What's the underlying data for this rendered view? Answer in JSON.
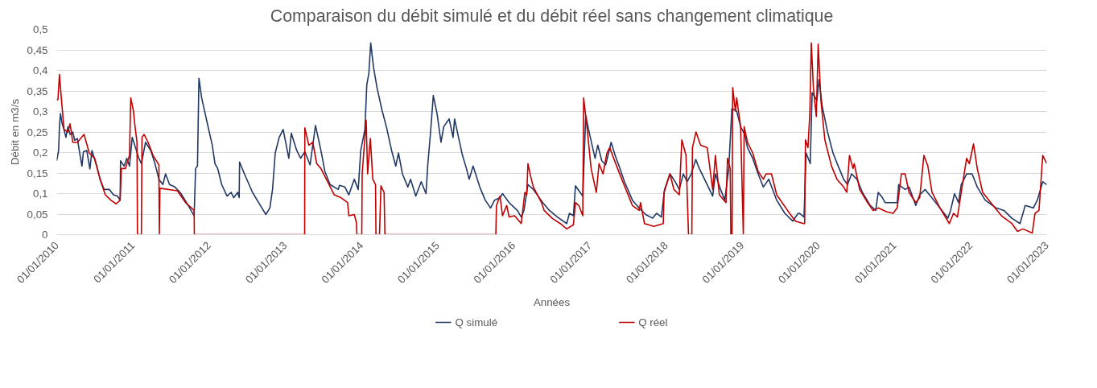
{
  "chart_data": {
    "type": "line",
    "title": "Comparaison du débit simulé et du débit réel sans changement climatique",
    "xlabel": "Années",
    "ylabel": "Débit en m3/s",
    "xlim": [
      "2010-01-01",
      "2023-01-01"
    ],
    "xticks": [
      {
        "value": "2010-01-01",
        "label": "01/01/2010"
      },
      {
        "value": "2011-01-01",
        "label": "01/01/2011"
      },
      {
        "value": "2012-01-01",
        "label": "01/01/2012"
      },
      {
        "value": "2013-01-01",
        "label": "01/01/2013"
      },
      {
        "value": "2014-01-01",
        "label": "01/01/2014"
      },
      {
        "value": "2015-01-01",
        "label": "01/01/2015"
      },
      {
        "value": "2016-01-01",
        "label": "01/01/2016"
      },
      {
        "value": "2017-01-01",
        "label": "01/01/2017"
      },
      {
        "value": "2018-01-01",
        "label": "01/01/2018"
      },
      {
        "value": "2019-01-01",
        "label": "01/01/2019"
      },
      {
        "value": "2020-01-01",
        "label": "01/01/2020"
      },
      {
        "value": "2021-01-01",
        "label": "01/01/2021"
      },
      {
        "value": "2022-01-01",
        "label": "01/01/2022"
      },
      {
        "value": "2023-01-01",
        "label": "01/01/2023"
      }
    ],
    "ylim": [
      0,
      0.5
    ],
    "yticks": [
      0,
      {
        "value": 0.05,
        "label": "0,05"
      },
      {
        "value": 0.1,
        "label": "0,1"
      },
      {
        "value": 0.15,
        "label": "0,15"
      },
      {
        "value": 0.2,
        "label": "0,2"
      },
      {
        "value": 0.25,
        "label": "0,25"
      },
      {
        "value": 0.3,
        "label": "0,3"
      },
      {
        "value": 0.35,
        "label": "0,35"
      },
      {
        "value": 0.4,
        "label": "0,4"
      },
      {
        "value": 0.45,
        "label": "0,45"
      },
      {
        "value": 0.5,
        "label": "0,5"
      }
    ],
    "grid": "y",
    "legend": "bottom",
    "line_style": "solid",
    "marker": "none",
    "series": [
      {
        "name": "Q simulé",
        "color": "#203864",
        "x": [
          "2010-01-01",
          "2010-01-10",
          "2010-01-14",
          "2010-01-19",
          "2010-01-27",
          "2010-02-05",
          "2010-02-14",
          "2010-02-24",
          "2010-03-06",
          "2010-03-19",
          "2010-03-28",
          "2010-04-10",
          "2010-04-23",
          "2010-05-02",
          "2010-05-09",
          "2010-05-25",
          "2010-06-09",
          "2010-06-19",
          "2010-07-08",
          "2010-07-28",
          "2010-08-16",
          "2010-09-11",
          "2010-09-30",
          "2010-10-19",
          "2010-11-01",
          "2010-11-03",
          "2010-11-20",
          "2010-12-03",
          "2010-12-16",
          "2010-12-29",
          "2011-01-10",
          "2011-01-30",
          "2011-02-11",
          "2011-03-03",
          "2011-03-28",
          "2011-04-17",
          "2011-05-06",
          "2011-05-25",
          "2011-06-07",
          "2011-06-26",
          "2011-07-22",
          "2011-08-16",
          "2011-09-24",
          "2011-10-22",
          "2011-10-29",
          "2011-11-07",
          "2011-11-14",
          "2011-11-27",
          "2011-12-22",
          "2012-01-17",
          "2012-01-30",
          "2012-02-12",
          "2012-03-02",
          "2012-03-28",
          "2012-04-16",
          "2012-04-29",
          "2012-05-18",
          "2012-05-25",
          "2012-05-27",
          "2012-06-19",
          "2012-07-28",
          "2012-09-04",
          "2012-09-30",
          "2012-10-19",
          "2012-11-01",
          "2012-11-14",
          "2012-12-03",
          "2012-12-22",
          "2013-01-18",
          "2013-01-30",
          "2013-02-25",
          "2013-03-16",
          "2013-04-05",
          "2013-04-30",
          "2013-05-26",
          "2013-06-21",
          "2013-07-10",
          "2013-08-04",
          "2013-09-12",
          "2013-09-18",
          "2013-10-14",
          "2013-11-02",
          "2013-11-28",
          "2013-12-17",
          "2013-12-29",
          "2014-01-18",
          "2014-01-27",
          "2014-02-06",
          "2014-02-15",
          "2014-02-28",
          "2014-03-17",
          "2014-04-11",
          "2014-05-01",
          "2014-05-26",
          "2014-06-15",
          "2014-06-28",
          "2014-07-17",
          "2014-08-12",
          "2014-08-25",
          "2014-09-19",
          "2014-10-15",
          "2014-11-07",
          "2014-11-16",
          "2014-11-29",
          "2014-12-12",
          "2014-12-30",
          "2015-01-18",
          "2015-01-31",
          "2015-02-26",
          "2015-03-17",
          "2015-03-24",
          "2015-04-12",
          "2015-05-01",
          "2015-05-20",
          "2015-06-02",
          "2015-06-21",
          "2015-07-23",
          "2015-08-18",
          "2015-09-13",
          "2015-10-02",
          "2015-10-28",
          "2015-11-09",
          "2015-12-11",
          "2016-01-19",
          "2016-02-07",
          "2016-02-20",
          "2016-03-10",
          "2016-04-05",
          "2016-05-20",
          "2016-06-21",
          "2016-07-29",
          "2016-09-12",
          "2016-09-25",
          "2016-10-14",
          "2016-10-24",
          "2016-11-15",
          "2016-11-28",
          "2016-12-12",
          "2016-12-31",
          "2017-01-26",
          "2017-02-08",
          "2017-02-27",
          "2017-03-18",
          "2017-04-13",
          "2017-05-02",
          "2017-05-21",
          "2017-06-16",
          "2017-07-24",
          "2017-08-25",
          "2017-09-26",
          "2017-10-29",
          "2017-11-17",
          "2017-12-10",
          "2017-12-25",
          "2018-01-20",
          "2018-02-14",
          "2018-03-06",
          "2018-03-25",
          "2018-04-13",
          "2018-05-02",
          "2018-05-24",
          "2018-06-10",
          "2018-07-05",
          "2018-08-13",
          "2018-08-26",
          "2018-09-20",
          "2018-10-10",
          "2018-10-29",
          "2018-11-13",
          "2018-12-06",
          "2018-12-25",
          "2019-01-14",
          "2019-01-27",
          "2019-02-21",
          "2019-03-19",
          "2019-04-13",
          "2019-05-09",
          "2019-06-16",
          "2019-07-25",
          "2019-09-01",
          "2019-09-27",
          "2019-10-03",
          "2019-10-25",
          "2019-11-04",
          "2019-11-24",
          "2019-12-03",
          "2019-12-26",
          "2020-01-05",
          "2020-01-20",
          "2020-02-15",
          "2020-03-12",
          "2020-04-06",
          "2020-05-02",
          "2020-05-21",
          "2020-06-09",
          "2020-07-05",
          "2020-07-31",
          "2020-09-07",
          "2020-10-03",
          "2020-10-15",
          "2020-11-04",
          "2020-11-17",
          "2020-12-06",
          "2021-01-14",
          "2021-01-21",
          "2021-02-21",
          "2021-03-12",
          "2021-04-13",
          "2021-05-02",
          "2021-05-28",
          "2021-06-29",
          "2021-08-07",
          "2021-09-14",
          "2021-09-27",
          "2021-10-16",
          "2021-11-04",
          "2021-11-17",
          "2021-12-13",
          "2022-01-08",
          "2022-02-02",
          "2022-03-12",
          "2022-05-03",
          "2022-06-10",
          "2022-07-18",
          "2022-08-26",
          "2022-09-20",
          "2022-10-29",
          "2022-11-17",
          "2022-12-13",
          "2023-01-01"
        ],
        "values": [
          0.18,
          0.205,
          0.263,
          0.295,
          0.27,
          0.256,
          0.237,
          0.263,
          0.244,
          0.25,
          0.23,
          0.234,
          0.193,
          0.167,
          0.202,
          0.205,
          0.16,
          0.205,
          0.173,
          0.135,
          0.11,
          0.11,
          0.097,
          0.094,
          0.084,
          0.18,
          0.167,
          0.186,
          0.167,
          0.237,
          0.218,
          0.186,
          0.173,
          0.225,
          0.205,
          0.173,
          0.135,
          0.122,
          0.148,
          0.122,
          0.116,
          0.103,
          0.071,
          0.046,
          0.161,
          0.167,
          0.381,
          0.333,
          0.276,
          0.218,
          0.173,
          0.161,
          0.122,
          0.094,
          0.103,
          0.09,
          0.103,
          0.09,
          0.177,
          0.148,
          0.103,
          0.071,
          0.049,
          0.065,
          0.11,
          0.199,
          0.237,
          0.256,
          0.186,
          0.247,
          0.205,
          0.186,
          0.202,
          0.17,
          0.266,
          0.205,
          0.154,
          0.122,
          0.11,
          0.12,
          0.116,
          0.097,
          0.135,
          0.11,
          0.205,
          0.256,
          0.365,
          0.393,
          0.467,
          0.409,
          0.358,
          0.301,
          0.263,
          0.205,
          0.167,
          0.199,
          0.148,
          0.116,
          0.135,
          0.094,
          0.129,
          0.1,
          0.173,
          0.25,
          0.339,
          0.295,
          0.225,
          0.263,
          0.282,
          0.237,
          0.282,
          0.237,
          0.193,
          0.161,
          0.135,
          0.167,
          0.116,
          0.084,
          0.065,
          0.084,
          0.09,
          0.1,
          0.078,
          0.059,
          0.043,
          0.059,
          0.122,
          0.11,
          0.078,
          0.059,
          0.043,
          0.027,
          0.052,
          0.046,
          0.119,
          0.103,
          0.094,
          0.29,
          0.244,
          0.186,
          0.218,
          0.18,
          0.17,
          0.225,
          0.193,
          0.167,
          0.129,
          0.084,
          0.065,
          0.049,
          0.04,
          0.052,
          0.043,
          0.11,
          0.148,
          0.129,
          0.11,
          0.148,
          0.129,
          0.148,
          0.183,
          0.161,
          0.135,
          0.094,
          0.148,
          0.11,
          0.084,
          0.161,
          0.307,
          0.301,
          0.263,
          0.244,
          0.212,
          0.186,
          0.148,
          0.116,
          0.135,
          0.084,
          0.052,
          0.033,
          0.052,
          0.052,
          0.043,
          0.199,
          0.173,
          0.346,
          0.327,
          0.378,
          0.314,
          0.25,
          0.199,
          0.167,
          0.135,
          0.122,
          0.148,
          0.135,
          0.103,
          0.071,
          0.059,
          0.103,
          0.09,
          0.078,
          0.078,
          0.078,
          0.122,
          0.11,
          0.116,
          0.071,
          0.097,
          0.11,
          0.09,
          0.065,
          0.04,
          0.059,
          0.1,
          0.078,
          0.122,
          0.148,
          0.148,
          0.116,
          0.084,
          0.065,
          0.059,
          0.04,
          0.027,
          0.071,
          0.065,
          0.084,
          0.129,
          0.122
        ]
      },
      {
        "name": "Q réel",
        "color": "#c00000",
        "x": [
          "2010-01-01",
          "2010-01-07",
          "2010-01-14",
          "2010-01-23",
          "2010-02-05",
          "2010-02-24",
          "2010-03-06",
          "2010-03-19",
          "2010-04-10",
          "2010-05-12",
          "2010-06-06",
          "2010-07-02",
          "2010-07-28",
          "2010-08-22",
          "2010-09-17",
          "2010-10-13",
          "2010-11-01",
          "2010-11-07",
          "2010-11-26",
          "2010-12-16",
          "2010-12-22",
          "2011-01-04",
          "2011-01-10",
          "2011-01-21",
          "2011-01-23",
          "2011-02-11",
          "2011-02-14",
          "2011-02-24",
          "2011-03-15",
          "2011-04-08",
          "2011-05-06",
          "2011-05-08",
          "2011-05-11",
          "2011-08-03",
          "2011-09-11",
          "2011-10-22",
          "2011-10-23",
          "2013-04-04",
          "2013-04-05",
          "2013-04-24",
          "2013-05-13",
          "2013-06-01",
          "2013-06-21",
          "2013-07-23",
          "2013-08-24",
          "2013-09-25",
          "2013-10-27",
          "2013-11-02",
          "2013-11-28",
          "2013-12-08",
          "2013-12-11",
          "2014-01-03",
          "2014-01-05",
          "2014-01-24",
          "2014-01-31",
          "2014-02-13",
          "2014-02-25",
          "2014-03-10",
          "2014-03-12",
          "2014-03-29",
          "2014-04-05",
          "2014-04-20",
          "2014-04-24",
          "2015-10-08",
          "2015-10-11",
          "2015-10-28",
          "2015-11-09",
          "2015-11-29",
          "2015-12-11",
          "2016-01-06",
          "2016-02-07",
          "2016-02-24",
          "2016-03-04",
          "2016-03-10",
          "2016-03-23",
          "2016-04-05",
          "2016-05-14",
          "2016-05-27",
          "2016-07-04",
          "2016-08-12",
          "2016-09-12",
          "2016-10-14",
          "2016-10-24",
          "2016-11-09",
          "2016-11-28",
          "2016-12-02",
          "2016-12-18",
          "2017-01-07",
          "2017-02-01",
          "2017-02-14",
          "2017-03-05",
          "2017-03-24",
          "2017-04-06",
          "2017-04-25",
          "2017-06-03",
          "2017-07-24",
          "2017-08-25",
          "2017-09-01",
          "2017-09-20",
          "2017-11-04",
          "2017-12-19",
          "2017-12-23",
          "2018-01-20",
          "2018-02-08",
          "2018-03-06",
          "2018-03-18",
          "2018-04-07",
          "2018-04-19",
          "2018-05-05",
          "2018-05-08",
          "2018-05-25",
          "2018-06-16",
          "2018-07-18",
          "2018-08-13",
          "2018-08-26",
          "2018-09-14",
          "2018-10-16",
          "2018-10-23",
          "2018-11-05",
          "2018-11-08",
          "2018-11-14",
          "2018-11-17",
          "2018-11-30",
          "2018-12-06",
          "2018-12-25",
          "2019-01-07",
          "2019-01-11",
          "2019-01-27",
          "2019-02-21",
          "2019-03-19",
          "2019-04-13",
          "2019-04-26",
          "2019-05-22",
          "2019-06-16",
          "2019-08-07",
          "2019-09-14",
          "2019-10-23",
          "2019-10-28",
          "2019-11-01",
          "2019-11-13",
          "2019-11-22",
          "2019-11-29",
          "2019-12-09",
          "2019-12-23",
          "2020-01-01",
          "2020-01-14",
          "2020-02-02",
          "2020-03-05",
          "2020-03-31",
          "2020-05-02",
          "2020-05-17",
          "2020-05-30",
          "2020-06-16",
          "2020-06-22",
          "2020-07-18",
          "2020-08-25",
          "2020-09-20",
          "2020-10-15",
          "2020-11-23",
          "2020-12-25",
          "2021-01-14",
          "2021-02-03",
          "2021-02-21",
          "2021-03-12",
          "2021-04-13",
          "2021-05-02",
          "2021-05-22",
          "2021-06-10",
          "2021-06-30",
          "2021-08-07",
          "2021-09-21",
          "2021-10-11",
          "2021-10-30",
          "2021-11-17",
          "2021-12-13",
          "2021-12-26",
          "2022-01-15",
          "2022-02-02",
          "2022-02-28",
          "2022-04-08",
          "2022-05-29",
          "2022-07-18",
          "2022-08-14",
          "2022-09-09",
          "2022-10-24",
          "2022-11-06",
          "2022-11-25",
          "2022-12-13",
          "2023-01-01"
        ],
        "values": [
          0.327,
          0.33,
          0.39,
          0.333,
          0.256,
          0.25,
          0.27,
          0.225,
          0.225,
          0.244,
          0.199,
          0.186,
          0.135,
          0.097,
          0.084,
          0.075,
          0.084,
          0.161,
          0.161,
          0.193,
          0.333,
          0.301,
          0.27,
          0.225,
          0,
          0,
          0.237,
          0.244,
          0.225,
          0.193,
          0.17,
          0,
          0.113,
          0.107,
          0.078,
          0.059,
          0,
          0,
          0.26,
          0.218,
          0.225,
          0.173,
          0.161,
          0.129,
          0.097,
          0.09,
          0.078,
          0.046,
          0.049,
          0.03,
          0,
          0,
          0.148,
          0.279,
          0.148,
          0.234,
          0.135,
          0.122,
          0,
          0,
          0.119,
          0.103,
          0,
          0,
          0.071,
          0.094,
          0.046,
          0.071,
          0.043,
          0.046,
          0.027,
          0.103,
          0.097,
          0.173,
          0.142,
          0.116,
          0.078,
          0.059,
          0.04,
          0.027,
          0.014,
          0.024,
          0.078,
          0.071,
          0.046,
          0.333,
          0.263,
          0.161,
          0.103,
          0.173,
          0.148,
          0.199,
          0.212,
          0.186,
          0.135,
          0.071,
          0.059,
          0.078,
          0.027,
          0.02,
          0.027,
          0.103,
          0.148,
          0.11,
          0.097,
          0.231,
          0.193,
          0,
          0,
          0.212,
          0.25,
          0.218,
          0.212,
          0.11,
          0.193,
          0.097,
          0.078,
          0.186,
          0.161,
          0,
          0,
          0.358,
          0.301,
          0.333,
          0.263,
          0,
          0.263,
          0.225,
          0.199,
          0.154,
          0.135,
          0.148,
          0.148,
          0.097,
          0.059,
          0.033,
          0.027,
          0.027,
          0.231,
          0.212,
          0.295,
          0.467,
          0.358,
          0.288,
          0.464,
          0.327,
          0.231,
          0.167,
          0.135,
          0.116,
          0.103,
          0.193,
          0.161,
          0.173,
          0.11,
          0.078,
          0.059,
          0.065,
          0.056,
          0.052,
          0.065,
          0.148,
          0.148,
          0.103,
          0.078,
          0.09,
          0.193,
          0.167,
          0.103,
          0.065,
          0.027,
          0.052,
          0.043,
          0.103,
          0.186,
          0.173,
          0.221,
          0.161,
          0.103,
          0.078,
          0.046,
          0.027,
          0.008,
          0.014,
          0.004,
          0.052,
          0.059,
          0.193,
          0.173
        ]
      }
    ]
  }
}
